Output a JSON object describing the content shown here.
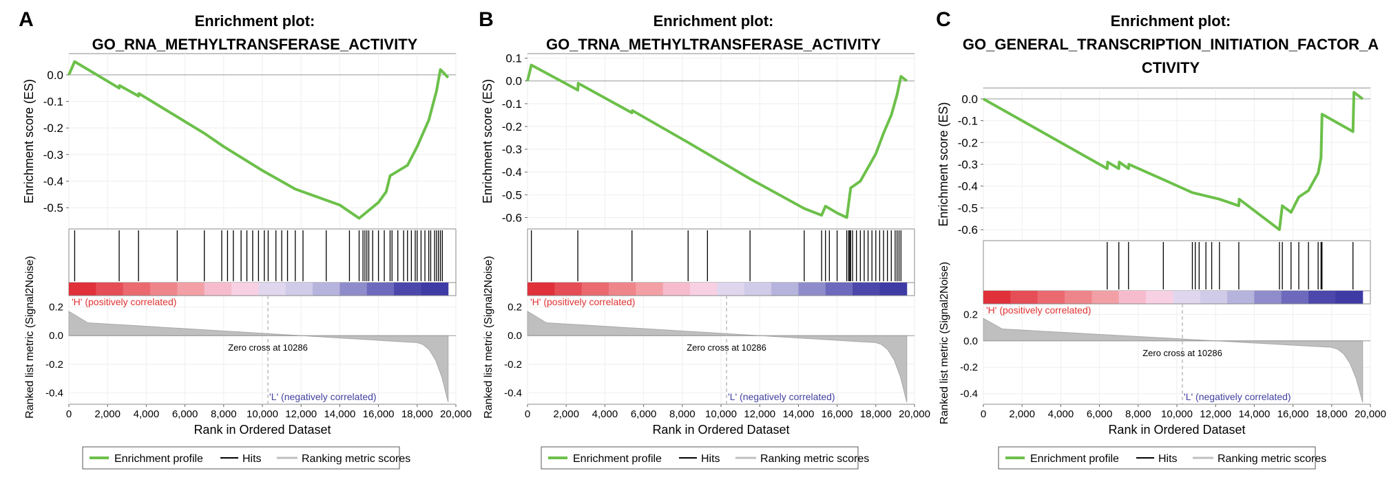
{
  "figure": {
    "common": {
      "rank_axis_label": "Rank in Ordered Dataset",
      "es_axis_label": "Enrichment score (ES)",
      "metric_axis_label": "Ranked list metric (Signal2Noise)",
      "pos_label": "'H' (positively correlated)",
      "neg_label": "'L' (negatively correlated)",
      "zero_cross": "Zero cross at 10286",
      "legend": [
        "Enrichment profile",
        "Hits",
        "Ranking metric scores"
      ],
      "colors": {
        "profile": "#6cc04a",
        "hits": "#000000",
        "metric": "#bfbfbf",
        "pos": "#e84a4a",
        "neg": "#5050b0",
        "pos_text": "#e03030",
        "neg_text": "#4040a0"
      }
    }
  },
  "chart_data": [
    {
      "panel": "A",
      "type": "line",
      "title_line1": "Enrichment plot:",
      "title_line2": "GO_RNA_METHYLTRANSFERASE_ACTIVITY",
      "title_line3": "",
      "xlabel": "Rank in Ordered Dataset",
      "xlim": [
        0,
        20000
      ],
      "xticks": [
        "0",
        "2,000",
        "4,000",
        "6,000",
        "8,000",
        "10,000",
        "12,000",
        "14,000",
        "16,000",
        "18,000",
        "20,000"
      ],
      "es_ylim": [
        -0.58,
        0.08
      ],
      "es_yticks": [
        "0.0",
        "-0.1",
        "-0.2",
        "-0.3",
        "-0.4",
        "-0.5"
      ],
      "es_yticks_values": [
        0.0,
        -0.1,
        -0.2,
        -0.3,
        -0.4,
        -0.5
      ],
      "metric_yticks": [
        "0.2",
        "0.0",
        "-0.2",
        "-0.4"
      ],
      "metric_yticks_values": [
        0.2,
        0.0,
        -0.2,
        -0.4
      ],
      "hits": [
        300,
        2600,
        3600,
        5600,
        7000,
        7900,
        8200,
        8500,
        8900,
        9200,
        9500,
        9800,
        10100,
        10300,
        10700,
        11000,
        11300,
        11700,
        12100,
        13300,
        14500,
        15000,
        15200,
        15300,
        15400,
        15500,
        15700,
        16000,
        16300,
        16600,
        16700,
        17000,
        17300,
        17500,
        17700,
        17900,
        18000,
        18200,
        18400,
        18600,
        18700,
        18900,
        19000,
        19100,
        19200,
        19300
      ],
      "profile": [
        [
          0,
          0.0
        ],
        [
          300,
          0.05
        ],
        [
          2600,
          -0.05
        ],
        [
          2620,
          -0.04
        ],
        [
          3600,
          -0.08
        ],
        [
          3620,
          -0.07
        ],
        [
          7000,
          -0.22
        ],
        [
          8000,
          -0.27
        ],
        [
          10000,
          -0.36
        ],
        [
          11700,
          -0.43
        ],
        [
          14000,
          -0.49
        ],
        [
          15000,
          -0.54
        ],
        [
          15500,
          -0.51
        ],
        [
          16000,
          -0.48
        ],
        [
          16400,
          -0.44
        ],
        [
          16600,
          -0.38
        ],
        [
          17500,
          -0.34
        ],
        [
          18000,
          -0.27
        ],
        [
          18600,
          -0.17
        ],
        [
          19000,
          -0.06
        ],
        [
          19200,
          0.02
        ],
        [
          19600,
          -0.01
        ]
      ]
    },
    {
      "panel": "B",
      "type": "line",
      "title_line1": "Enrichment plot:",
      "title_line2": "GO_TRNA_METHYLTRANSFERASE_ACTIVITY",
      "title_line3": "",
      "xlabel": "Rank in Ordered Dataset",
      "xlim": [
        0,
        20000
      ],
      "xticks": [
        "0",
        "2,000",
        "4,000",
        "6,000",
        "8,000",
        "10,000",
        "12,000",
        "14,000",
        "16,000",
        "18,000",
        "20,000"
      ],
      "es_ylim": [
        -0.65,
        0.12
      ],
      "es_yticks": [
        "0.1",
        "0.0",
        "-0.1",
        "-0.2",
        "-0.3",
        "-0.4",
        "-0.5",
        "-0.6"
      ],
      "es_yticks_values": [
        0.1,
        0.0,
        -0.1,
        -0.2,
        -0.3,
        -0.4,
        -0.5,
        -0.6
      ],
      "metric_yticks": [
        "0.2",
        "0.0",
        "-0.2",
        "-0.4"
      ],
      "metric_yticks_values": [
        0.2,
        0.0,
        -0.2,
        -0.4
      ],
      "hits": [
        200,
        2600,
        5400,
        8300,
        9300,
        11500,
        14300,
        15200,
        15400,
        15600,
        16000,
        16500,
        16600,
        16650,
        16700,
        16800,
        17000,
        17200,
        17400,
        17600,
        17800,
        18000,
        18200,
        18400,
        18600,
        18800,
        19000,
        19100,
        19200,
        19300
      ],
      "profile": [
        [
          0,
          0.0
        ],
        [
          200,
          0.07
        ],
        [
          2600,
          -0.04
        ],
        [
          2620,
          -0.01
        ],
        [
          5400,
          -0.14
        ],
        [
          5420,
          -0.13
        ],
        [
          8300,
          -0.27
        ],
        [
          11500,
          -0.43
        ],
        [
          14300,
          -0.56
        ],
        [
          15200,
          -0.59
        ],
        [
          15400,
          -0.55
        ],
        [
          16000,
          -0.58
        ],
        [
          16500,
          -0.6
        ],
        [
          16700,
          -0.47
        ],
        [
          17200,
          -0.44
        ],
        [
          17600,
          -0.38
        ],
        [
          18000,
          -0.32
        ],
        [
          18400,
          -0.23
        ],
        [
          18800,
          -0.15
        ],
        [
          19100,
          -0.06
        ],
        [
          19300,
          0.02
        ],
        [
          19600,
          0.0
        ]
      ]
    },
    {
      "panel": "C",
      "type": "line",
      "title_line1": "Enrichment plot:",
      "title_line2": "GO_GENERAL_TRANSCRIPTION_INITIATION_FACTOR_A",
      "title_line3": "CTIVITY",
      "xlabel": "Rank in Ordered Dataset",
      "xlim": [
        0,
        20000
      ],
      "xticks": [
        "0",
        "2,000",
        "4,000",
        "6,000",
        "8,000",
        "10,000",
        "12,000",
        "14,000",
        "16,000",
        "18,000",
        "20,000"
      ],
      "es_ylim": [
        -0.65,
        0.05
      ],
      "es_yticks": [
        "0.0",
        "-0.1",
        "-0.2",
        "-0.3",
        "-0.4",
        "-0.5",
        "-0.6"
      ],
      "es_yticks_values": [
        0.0,
        -0.1,
        -0.2,
        -0.3,
        -0.4,
        -0.5,
        -0.6
      ],
      "metric_yticks": [
        "0.2",
        "0.0",
        "-0.2",
        "-0.4"
      ],
      "metric_yticks_values": [
        0.2,
        0.0,
        -0.2,
        -0.4
      ],
      "hits": [
        6400,
        7000,
        7500,
        9300,
        10800,
        10950,
        11150,
        11500,
        11800,
        12200,
        13200,
        15300,
        15450,
        15900,
        16300,
        16800,
        17300,
        17450,
        17500,
        19100
      ],
      "profile": [
        [
          0,
          0.0
        ],
        [
          6400,
          -0.32
        ],
        [
          6420,
          -0.29
        ],
        [
          7000,
          -0.32
        ],
        [
          7020,
          -0.29
        ],
        [
          7500,
          -0.32
        ],
        [
          7520,
          -0.3
        ],
        [
          9300,
          -0.37
        ],
        [
          10800,
          -0.43
        ],
        [
          12200,
          -0.46
        ],
        [
          13200,
          -0.49
        ],
        [
          13220,
          -0.46
        ],
        [
          15300,
          -0.6
        ],
        [
          15450,
          -0.49
        ],
        [
          15900,
          -0.52
        ],
        [
          16300,
          -0.45
        ],
        [
          16800,
          -0.42
        ],
        [
          17300,
          -0.34
        ],
        [
          17450,
          -0.27
        ],
        [
          17500,
          -0.07
        ],
        [
          19100,
          -0.15
        ],
        [
          19150,
          0.03
        ],
        [
          19600,
          0.0
        ]
      ]
    }
  ]
}
